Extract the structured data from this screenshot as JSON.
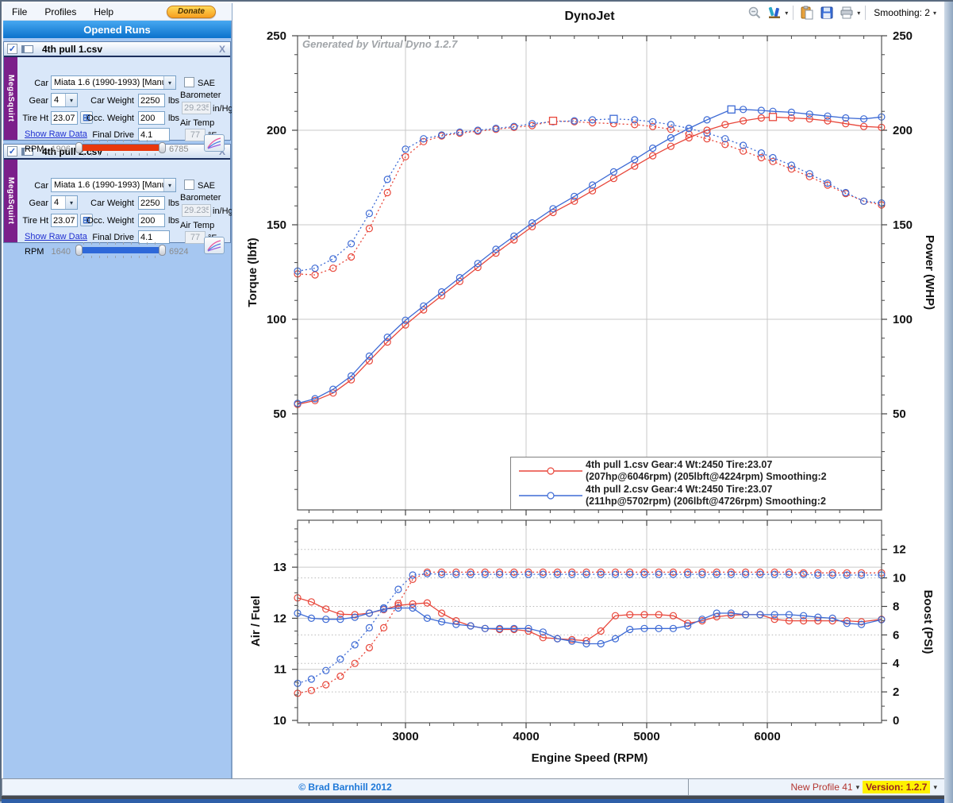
{
  "menu": {
    "items": [
      "File",
      "Profiles",
      "Help"
    ],
    "donate_label": "Donate"
  },
  "toolbar": {
    "smoothing_label": "Smoothing: 2",
    "icons": [
      "zoom-out-icon",
      "chart-options-icon",
      "paste-icon",
      "save-icon",
      "print-icon"
    ]
  },
  "sidebar": {
    "header": "Opened Runs",
    "labels": {
      "car": "Car",
      "gear": "Gear",
      "car_weight": "Car Weight",
      "tire_ht": "Tire Ht",
      "occ_weight": "Occ. Weight",
      "final_drive": "Final Drive",
      "lbs": "lbs",
      "sae": "SAE",
      "barometer": "Barometer",
      "in_hg": "in/Hg",
      "air_temp": "Air Temp",
      "deg_f": "°F",
      "show_raw": "Show Raw Data",
      "rpm": "RPM",
      "close": "X"
    },
    "runs": [
      {
        "title": "4th pull 1.csv",
        "brand": "MegaSquirt",
        "car": "Miata 1.6 (1990-1993) [Manu",
        "gear": "4",
        "car_weight": "2250",
        "occ_weight": "200",
        "tire_ht": "23.07",
        "final_drive": "4.1",
        "barometer": "29.235",
        "air_temp": "77",
        "rpm_min": "1906",
        "rpm_max": "6785",
        "accent": "#e8380d"
      },
      {
        "title": "4th pull 2.csv",
        "brand": "MegaSquirt",
        "car": "Miata 1.6 (1990-1993) [Manu",
        "gear": "4",
        "car_weight": "2250",
        "occ_weight": "200",
        "tire_ht": "23.07",
        "final_drive": "4.1",
        "barometer": "29.235",
        "air_temp": "77",
        "rpm_min": "1640",
        "rpm_max": "6924",
        "accent": "#2e68d9"
      }
    ]
  },
  "chart_data": [
    {
      "type": "line",
      "title": "DynoJet",
      "watermark": "Generated by Virtual Dyno 1.2.7",
      "x_range": [
        2105,
        6947
      ],
      "x_gridlines": [
        3000,
        4000,
        5000,
        6000
      ],
      "left_axis": {
        "label": "Torque (lbft)",
        "ticks": [
          250,
          200,
          150,
          100,
          50
        ],
        "range": [
          0,
          250
        ]
      },
      "right_axis": {
        "label": "Power (WHP)",
        "ticks": [
          250,
          200,
          150,
          100,
          50
        ],
        "range": [
          0,
          250
        ]
      },
      "series": [
        {
          "name": "torque_run1",
          "axis": "left",
          "color": "#e8473b",
          "style": "dotted",
          "x": [
            2105,
            2250,
            2400,
            2550,
            2700,
            2850,
            3000,
            3150,
            3300,
            3450,
            3600,
            3750,
            3900,
            4050,
            4224,
            4400,
            4550,
            4726,
            4900,
            5050,
            5200,
            5350,
            5500,
            5650,
            5800,
            5950,
            6046,
            6200,
            6350,
            6500,
            6650,
            6800,
            6947
          ],
          "y": [
            124,
            123.5,
            127,
            133,
            148,
            167,
            186,
            194,
            197,
            198.5,
            199.5,
            200.5,
            201.5,
            202.5,
            205,
            204.5,
            204,
            203.5,
            203,
            202,
            200.5,
            198,
            195.5,
            192.5,
            189,
            185.5,
            183.5,
            179.5,
            175.5,
            171,
            166.5,
            162.5,
            160.5
          ],
          "peak": {
            "x": 4224,
            "y": 205
          }
        },
        {
          "name": "torque_run2",
          "axis": "left",
          "color": "#3e6bd5",
          "style": "dotted",
          "x": [
            2105,
            2250,
            2400,
            2550,
            2700,
            2850,
            3000,
            3150,
            3300,
            3450,
            3600,
            3750,
            3900,
            4050,
            4224,
            4400,
            4550,
            4726,
            4900,
            5050,
            5200,
            5350,
            5500,
            5650,
            5800,
            5950,
            6046,
            6200,
            6350,
            6500,
            6650,
            6800,
            6947
          ],
          "y": [
            125.5,
            127,
            132,
            140,
            156,
            174,
            190,
            195.5,
            197.5,
            199,
            200,
            201,
            202,
            203.5,
            204.5,
            205,
            205.5,
            206,
            205.5,
            204.5,
            203,
            201,
            198.5,
            195.5,
            192,
            188,
            185.5,
            181.5,
            177,
            172,
            167,
            162.5,
            161.5
          ],
          "peak": {
            "x": 4726,
            "y": 206
          }
        },
        {
          "name": "power_run1",
          "axis": "right",
          "color": "#e8473b",
          "style": "solid",
          "x": [
            2105,
            2250,
            2400,
            2550,
            2700,
            2850,
            3000,
            3150,
            3300,
            3450,
            3600,
            3750,
            3900,
            4050,
            4224,
            4400,
            4550,
            4726,
            4900,
            5050,
            5200,
            5350,
            5500,
            5650,
            5800,
            5950,
            6046,
            6200,
            6350,
            6500,
            6650,
            6800,
            6947
          ],
          "y": [
            55,
            57,
            61,
            68,
            78,
            88,
            97,
            105,
            112.5,
            120,
            127.5,
            135,
            142,
            149,
            156.5,
            162.5,
            168,
            174.5,
            181,
            186.5,
            191.5,
            196,
            200,
            203,
            205,
            206.5,
            207,
            206.5,
            206,
            205,
            203.5,
            202,
            201.5
          ],
          "peak": {
            "x": 6046,
            "y": 207
          }
        },
        {
          "name": "power_run2",
          "axis": "right",
          "color": "#3e6bd5",
          "style": "solid",
          "x": [
            2105,
            2250,
            2400,
            2550,
            2700,
            2850,
            3000,
            3150,
            3300,
            3450,
            3600,
            3750,
            3900,
            4050,
            4224,
            4400,
            4550,
            4726,
            4900,
            5050,
            5200,
            5350,
            5500,
            5702,
            5800,
            5950,
            6046,
            6200,
            6350,
            6500,
            6650,
            6800,
            6947
          ],
          "y": [
            55.5,
            58,
            63,
            70,
            80.5,
            90.5,
            99.5,
            107,
            114.5,
            122,
            129.5,
            137,
            144,
            151,
            158.5,
            165,
            171,
            178,
            184.5,
            190.5,
            196,
            201,
            205.5,
            211,
            211,
            210.5,
            210,
            209.5,
            208.5,
            207.5,
            206.5,
            206,
            207
          ],
          "peak": {
            "x": 5702,
            "y": 211
          }
        }
      ],
      "legend": [
        {
          "color": "#e8473b",
          "line1": "4th pull 1.csv Gear:4 Wt:2450 Tire:23.07",
          "line2": "(207hp@6046rpm) (205lbft@4224rpm) Smoothing:2"
        },
        {
          "color": "#3e6bd5",
          "line1": "4th pull 2.csv Gear:4 Wt:2450 Tire:23.07",
          "line2": "(211hp@5702rpm) (206lbft@4726rpm) Smoothing:2"
        }
      ]
    },
    {
      "type": "line",
      "xlabel": "Engine Speed (RPM)",
      "x_ticks": [
        3000,
        4000,
        5000,
        6000
      ],
      "left_axis": {
        "label": "Air / Fuel",
        "ticks": [
          13,
          12,
          11,
          10
        ],
        "range": [
          10,
          13.9
        ]
      },
      "right_axis": {
        "label": "Boost (PSI)",
        "ticks": [
          12,
          10,
          8,
          6,
          4,
          2,
          0
        ],
        "range": [
          0,
          14
        ]
      },
      "series": [
        {
          "name": "afr_run1",
          "axis": "left",
          "color": "#e8473b",
          "style": "solid",
          "x": [
            2105,
            2220,
            2340,
            2460,
            2580,
            2700,
            2820,
            2940,
            3060,
            3180,
            3300,
            3420,
            3540,
            3660,
            3780,
            3900,
            4020,
            4140,
            4260,
            4380,
            4500,
            4620,
            4740,
            4860,
            4980,
            5100,
            5220,
            5340,
            5460,
            5580,
            5700,
            5820,
            5940,
            6060,
            6180,
            6300,
            6420,
            6540,
            6660,
            6780,
            6947
          ],
          "y": [
            12.4,
            12.32,
            12.18,
            12.08,
            12.07,
            12.1,
            12.17,
            12.25,
            12.28,
            12.3,
            12.1,
            11.95,
            11.85,
            11.8,
            11.78,
            11.78,
            11.75,
            11.62,
            11.6,
            11.58,
            11.56,
            11.75,
            12.05,
            12.07,
            12.07,
            12.07,
            12.05,
            11.9,
            11.95,
            12.03,
            12.06,
            12.07,
            12.07,
            11.98,
            11.95,
            11.95,
            11.95,
            11.95,
            11.95,
            11.93,
            11.98
          ]
        },
        {
          "name": "afr_run2",
          "axis": "left",
          "color": "#3e6bd5",
          "style": "solid",
          "x": [
            2105,
            2220,
            2340,
            2460,
            2580,
            2700,
            2820,
            2940,
            3060,
            3180,
            3300,
            3420,
            3540,
            3660,
            3780,
            3900,
            4020,
            4140,
            4260,
            4380,
            4500,
            4620,
            4740,
            4860,
            4980,
            5100,
            5220,
            5340,
            5460,
            5580,
            5700,
            5820,
            5940,
            6060,
            6180,
            6300,
            6420,
            6540,
            6660,
            6780,
            6947
          ],
          "y": [
            12.1,
            12.0,
            11.98,
            11.98,
            12.02,
            12.1,
            12.18,
            12.2,
            12.2,
            12.0,
            11.93,
            11.88,
            11.85,
            11.8,
            11.8,
            11.8,
            11.8,
            11.73,
            11.6,
            11.55,
            11.5,
            11.5,
            11.6,
            11.78,
            11.8,
            11.8,
            11.8,
            11.85,
            11.98,
            12.1,
            12.1,
            12.07,
            12.07,
            12.07,
            12.07,
            12.05,
            12.02,
            12.0,
            11.9,
            11.88,
            11.97
          ]
        },
        {
          "name": "boost_run1",
          "axis": "right",
          "color": "#e8473b",
          "style": "dotted",
          "x": [
            2105,
            2220,
            2340,
            2460,
            2580,
            2700,
            2820,
            2940,
            3060,
            3180,
            3300,
            3420,
            3540,
            3660,
            3780,
            3900,
            4020,
            4140,
            4260,
            4380,
            4500,
            4620,
            4740,
            4860,
            4980,
            5100,
            5220,
            5340,
            5460,
            5580,
            5700,
            5820,
            5940,
            6060,
            6180,
            6300,
            6420,
            6540,
            6660,
            6780,
            6947
          ],
          "y": [
            1.9,
            2.1,
            2.5,
            3.1,
            4.0,
            5.1,
            6.5,
            8.2,
            9.9,
            10.4,
            10.4,
            10.4,
            10.4,
            10.4,
            10.4,
            10.4,
            10.4,
            10.4,
            10.4,
            10.4,
            10.4,
            10.4,
            10.4,
            10.4,
            10.4,
            10.4,
            10.4,
            10.4,
            10.4,
            10.4,
            10.4,
            10.4,
            10.4,
            10.4,
            10.4,
            10.35,
            10.35,
            10.35,
            10.35,
            10.35,
            10.35
          ]
        },
        {
          "name": "boost_run2",
          "axis": "right",
          "color": "#3e6bd5",
          "style": "dotted",
          "x": [
            2105,
            2220,
            2340,
            2460,
            2580,
            2700,
            2820,
            2940,
            3060,
            3180,
            3300,
            3420,
            3540,
            3660,
            3780,
            3900,
            4020,
            4140,
            4260,
            4380,
            4500,
            4620,
            4740,
            4860,
            4980,
            5100,
            5220,
            5340,
            5460,
            5580,
            5700,
            5820,
            5940,
            6060,
            6180,
            6300,
            6420,
            6540,
            6660,
            6780,
            6947
          ],
          "y": [
            2.6,
            2.9,
            3.5,
            4.3,
            5.3,
            6.5,
            7.9,
            9.2,
            10.2,
            10.3,
            10.25,
            10.25,
            10.25,
            10.25,
            10.25,
            10.25,
            10.25,
            10.25,
            10.25,
            10.25,
            10.25,
            10.25,
            10.25,
            10.25,
            10.25,
            10.25,
            10.25,
            10.25,
            10.25,
            10.25,
            10.25,
            10.25,
            10.25,
            10.25,
            10.25,
            10.25,
            10.2,
            10.2,
            10.2,
            10.2,
            10.2
          ]
        }
      ]
    }
  ],
  "statusbar": {
    "copyright": "© Brad Barnhill 2012",
    "profile": "New Profile 41",
    "version": "Version: 1.2.7"
  }
}
